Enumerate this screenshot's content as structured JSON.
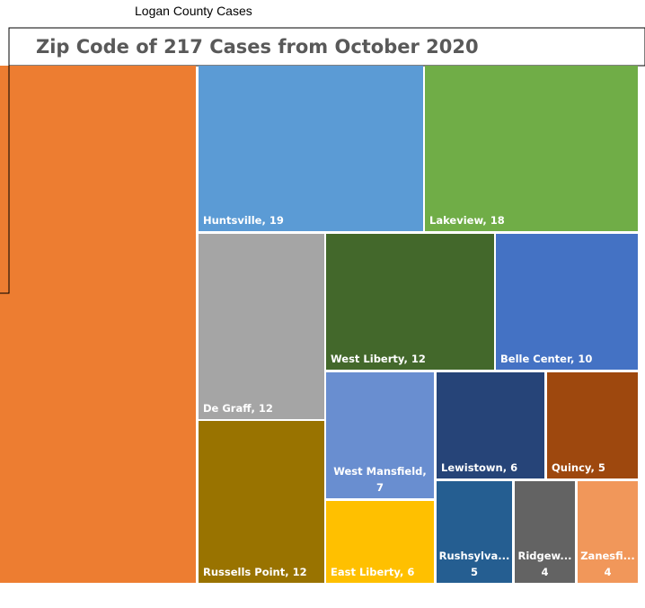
{
  "header": {
    "title": "Logan County Cases"
  },
  "chart_data": {
    "type": "treemap",
    "title": "Zip Code of 217 Cases from October 2020",
    "categories": [
      null,
      "Huntsville",
      "Lakeview",
      "De Graff",
      "West Liberty",
      "Belle Center",
      "Russells Point",
      "West Mansfield",
      "Lewistown",
      "Quincy",
      "East Liberty",
      "Rushsylva...",
      "Ridgew...",
      "Zanesfi..."
    ],
    "values": [
      53,
      19,
      18,
      12,
      12,
      10,
      12,
      7,
      6,
      5,
      6,
      5,
      4,
      4
    ],
    "colors": [
      "#ED7D31",
      "#5B9BD5",
      "#70AD47",
      "#A5A5A5",
      "#43682B",
      "#4472C4",
      "#997300",
      "#698ED0",
      "#264478",
      "#9E480E",
      "#FFC000",
      "#255E91",
      "#636363",
      "#F1975A"
    ]
  }
}
